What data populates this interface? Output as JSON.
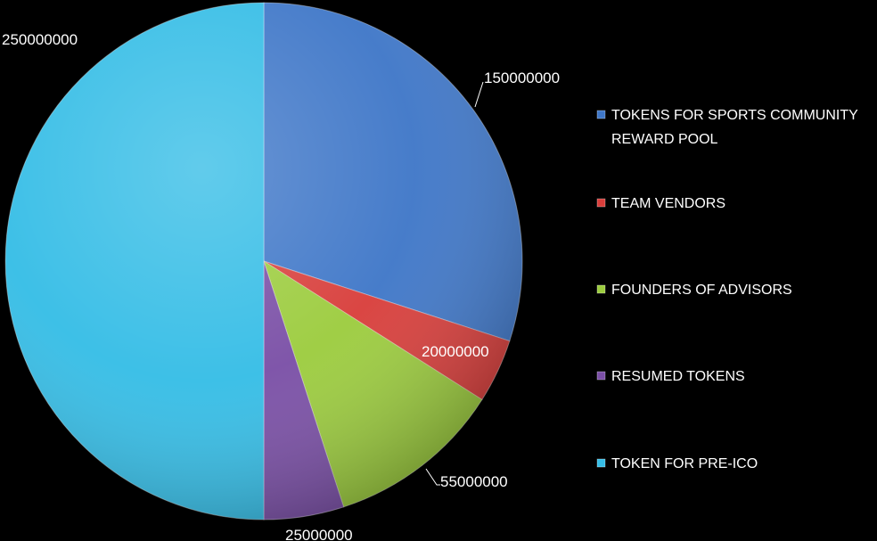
{
  "chart_data": {
    "type": "pie",
    "title": "",
    "legend_position": "right",
    "slices": [
      {
        "label": "TOKENS FOR SPORTS COMMUNITY REWARD POOL",
        "value": 150000000,
        "value_label": "150000000",
        "color": "#3f77c8"
      },
      {
        "label": "TEAM VENDORS",
        "value": 20000000,
        "value_label": "20000000",
        "color": "#d83e3b"
      },
      {
        "label": "FOUNDERS OF ADVISORS",
        "value": 55000000,
        "value_label": "55000000",
        "color": "#9ccc3e"
      },
      {
        "label": "RESUMED TOKENS",
        "value": 25000000,
        "value_label": "25000000",
        "color": "#7a4fa6"
      },
      {
        "label": "TOKEN FOR PRE-ICO",
        "value": 250000000,
        "value_label": "250000000",
        "color": "#35bde6"
      }
    ]
  }
}
